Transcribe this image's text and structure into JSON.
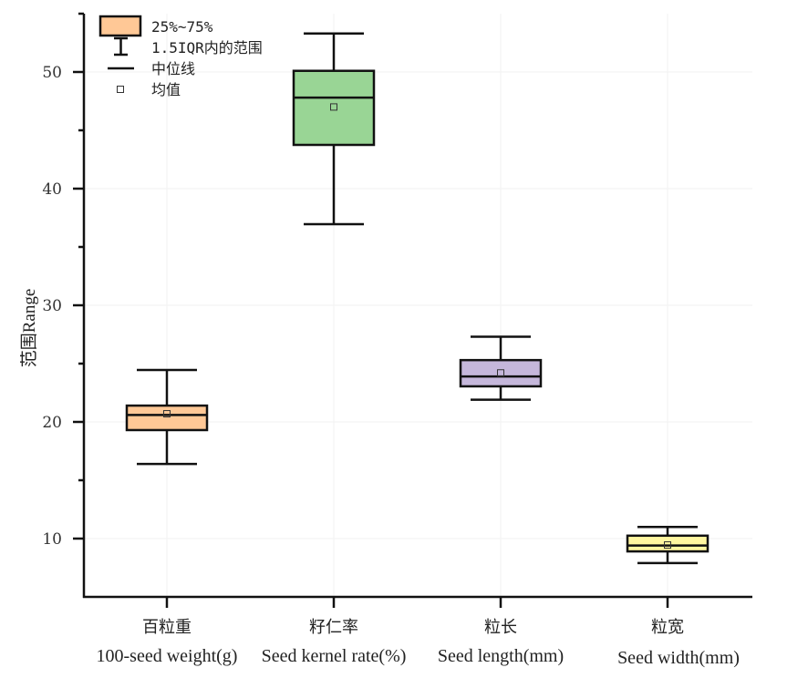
{
  "chart_data": {
    "type": "box",
    "title": "",
    "ylabel": "范围Range",
    "xlabel": "",
    "ylim": [
      5,
      55
    ],
    "yticks": [
      10,
      20,
      30,
      40,
      50
    ],
    "ytick_labels": [
      "10",
      "20",
      "30",
      "40",
      "50"
    ],
    "yminor_ticks": [
      15,
      25,
      35,
      45,
      55
    ],
    "grid": false,
    "legend_position": "top-left",
    "legend": [
      {
        "symbol": "box",
        "label": "25%~75%"
      },
      {
        "symbol": "whisker",
        "label": "1.5IQR内的范围"
      },
      {
        "symbol": "median-line",
        "label": "中位线"
      },
      {
        "symbol": "mean-square",
        "label": "均值"
      }
    ],
    "categories": [
      {
        "cn": "百粒重",
        "en": "100-seed weight(g)"
      },
      {
        "cn": "籽仁率",
        "en": "Seed kernel rate(%)"
      },
      {
        "cn": "粒长",
        "en": "Seed length(mm)"
      },
      {
        "cn": "粒宽",
        "en": "Seed width(mm)"
      }
    ],
    "boxes": [
      {
        "whisker_low": 16.4,
        "q1": 19.3,
        "median": 20.6,
        "mean": 20.7,
        "q3": 21.4,
        "whisker_high": 24.45,
        "color": "#FFC896"
      },
      {
        "whisker_low": 36.95,
        "q1": 43.75,
        "median": 47.8,
        "mean": 47.0,
        "q3": 50.1,
        "whisker_high": 53.3,
        "color": "#99D595"
      },
      {
        "whisker_low": 21.9,
        "q1": 23.05,
        "median": 23.9,
        "mean": 24.2,
        "q3": 25.3,
        "whisker_high": 27.3,
        "color": "#C5B7DB"
      },
      {
        "whisker_low": 7.9,
        "q1": 8.9,
        "median": 9.4,
        "mean": 9.45,
        "q3": 10.25,
        "whisker_high": 11.0,
        "color": "#FFF6A0"
      }
    ]
  }
}
